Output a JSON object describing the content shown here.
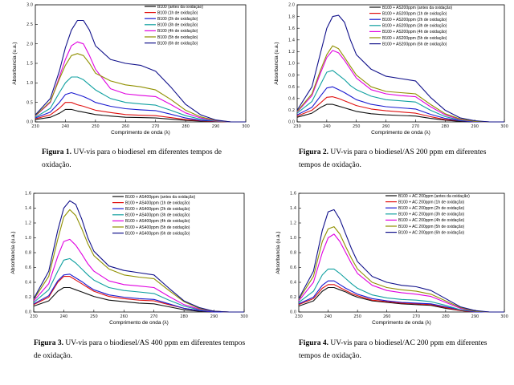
{
  "captions": [
    {
      "label": "Figura 1.",
      "text": "UV-vis para o biodiesel em diferentes tempos de oxidação."
    },
    {
      "label": "Figura 2.",
      "text": "UV-vis para o biodiesel/AS 200 ppm em diferentes tempos de oxidação."
    },
    {
      "label": "Figura 3.",
      "text": "UV-vis para o biodiesel/AS 400 ppm em diferentes tempos de oxidação."
    },
    {
      "label": "Figura 4.",
      "text": "UV-vis para o biodiesel/AC 200 ppm em diferentes tempos de oxidação."
    }
  ],
  "series_colors": [
    "#111111",
    "#e01010",
    "#1a1ad0",
    "#10a0a0",
    "#e000e0",
    "#909000",
    "#10108a"
  ],
  "chart_data": [
    {
      "type": "line",
      "xlabel": "Comprimento de onda (λ)",
      "ylabel": "Absorbancia (u.a.)",
      "xlim": [
        230,
        300
      ],
      "ylim": [
        0,
        3.0
      ],
      "xticks": [
        230,
        240,
        250,
        260,
        270,
        280,
        290,
        300
      ],
      "yticks": [
        0,
        0.5,
        1.0,
        1.5,
        2.0,
        2.5,
        3.0
      ],
      "ytick_labels": [
        "0.0",
        "0.5",
        "1.0",
        "1.5",
        "2.0",
        "2.5",
        "3.0"
      ],
      "legend_position": "top-right",
      "x": [
        230,
        235,
        238,
        240,
        242,
        244,
        246,
        248,
        250,
        255,
        260,
        265,
        270,
        275,
        280,
        285,
        290,
        295,
        300
      ],
      "series": [
        {
          "name": "B100 (antes da oxidação)",
          "values": [
            0.06,
            0.12,
            0.22,
            0.32,
            0.32,
            0.28,
            0.25,
            0.22,
            0.19,
            0.15,
            0.12,
            0.11,
            0.1,
            0.07,
            0.04,
            0.02,
            0.01,
            0.0,
            0.0
          ]
        },
        {
          "name": "B100 (1h de oxidação)",
          "values": [
            0.08,
            0.18,
            0.35,
            0.5,
            0.5,
            0.44,
            0.4,
            0.35,
            0.3,
            0.24,
            0.19,
            0.17,
            0.16,
            0.11,
            0.06,
            0.03,
            0.01,
            0.0,
            0.0
          ]
        },
        {
          "name": "B100 (2h de oxidação)",
          "values": [
            0.1,
            0.25,
            0.5,
            0.7,
            0.75,
            0.7,
            0.65,
            0.58,
            0.5,
            0.4,
            0.34,
            0.31,
            0.29,
            0.2,
            0.1,
            0.04,
            0.02,
            0.0,
            0.0
          ]
        },
        {
          "name": "B100 (3h de oxidação)",
          "values": [
            0.12,
            0.35,
            0.75,
            1.0,
            1.15,
            1.15,
            1.08,
            0.95,
            0.82,
            0.6,
            0.5,
            0.46,
            0.43,
            0.3,
            0.16,
            0.07,
            0.02,
            0.0,
            0.0
          ]
        },
        {
          "name": "B100 (4h de oxidação)",
          "values": [
            0.15,
            0.5,
            1.15,
            1.6,
            1.95,
            2.05,
            2.0,
            1.7,
            1.35,
            0.85,
            0.72,
            0.68,
            0.65,
            0.45,
            0.23,
            0.1,
            0.03,
            0.0,
            0.0
          ]
        },
        {
          "name": "B100 (5h de oxidação)",
          "values": [
            0.16,
            0.52,
            1.1,
            1.45,
            1.7,
            1.75,
            1.7,
            1.5,
            1.25,
            1.05,
            0.95,
            0.9,
            0.82,
            0.58,
            0.3,
            0.13,
            0.04,
            0.0,
            0.0
          ]
        },
        {
          "name": "B100 (6h de oxidação)",
          "values": [
            0.18,
            0.6,
            1.3,
            1.9,
            2.35,
            2.6,
            2.6,
            2.35,
            1.95,
            1.6,
            1.5,
            1.45,
            1.3,
            0.9,
            0.45,
            0.18,
            0.05,
            0.0,
            0.0
          ]
        }
      ]
    },
    {
      "type": "line",
      "xlabel": "Comprimento de onda (λ)",
      "ylabel": "Absorbancia (u.a.)",
      "xlim": [
        230,
        300
      ],
      "ylim": [
        0,
        2.0
      ],
      "xticks": [
        230,
        240,
        250,
        260,
        270,
        280,
        290,
        300
      ],
      "yticks": [
        0,
        0.2,
        0.4,
        0.6,
        0.8,
        1.0,
        1.2,
        1.4,
        1.6,
        1.8,
        2.0
      ],
      "ytick_labels": [
        "0.0",
        "0.2",
        "0.4",
        "0.6",
        "0.8",
        "1.0",
        "1.2",
        "1.4",
        "1.6",
        "1.8",
        "2.0"
      ],
      "legend_position": "top-right",
      "x": [
        230,
        235,
        238,
        240,
        242,
        244,
        246,
        248,
        250,
        255,
        260,
        265,
        270,
        275,
        280,
        285,
        290,
        295,
        300
      ],
      "series": [
        {
          "name": "B100 + AS200ppm (antes da oxidação)",
          "values": [
            0.08,
            0.15,
            0.25,
            0.3,
            0.3,
            0.27,
            0.24,
            0.21,
            0.18,
            0.14,
            0.12,
            0.11,
            0.1,
            0.06,
            0.03,
            0.01,
            0.0,
            0.0,
            0.0
          ]
        },
        {
          "name": "B100 + AS200ppm (1h de oxidação)",
          "values": [
            0.1,
            0.2,
            0.33,
            0.42,
            0.43,
            0.4,
            0.36,
            0.32,
            0.28,
            0.22,
            0.19,
            0.17,
            0.15,
            0.09,
            0.04,
            0.02,
            0.0,
            0.0,
            0.0
          ]
        },
        {
          "name": "B100 + AS200ppm (2h de oxidação)",
          "values": [
            0.12,
            0.25,
            0.45,
            0.58,
            0.6,
            0.55,
            0.5,
            0.44,
            0.38,
            0.3,
            0.26,
            0.24,
            0.22,
            0.13,
            0.06,
            0.02,
            0.0,
            0.0,
            0.0
          ]
        },
        {
          "name": "B100 + AS200ppm (3h de oxidação)",
          "values": [
            0.15,
            0.35,
            0.65,
            0.85,
            0.88,
            0.8,
            0.72,
            0.62,
            0.55,
            0.44,
            0.38,
            0.36,
            0.34,
            0.2,
            0.09,
            0.03,
            0.01,
            0.0,
            0.0
          ]
        },
        {
          "name": "B100 + AS200ppm (4h de oxidação)",
          "values": [
            0.17,
            0.45,
            0.85,
            1.1,
            1.22,
            1.18,
            1.05,
            0.9,
            0.75,
            0.55,
            0.48,
            0.45,
            0.43,
            0.26,
            0.12,
            0.04,
            0.01,
            0.0,
            0.0
          ]
        },
        {
          "name": "B100 + AS200ppm (5h de oxidação)",
          "values": [
            0.18,
            0.48,
            0.9,
            1.15,
            1.3,
            1.25,
            1.1,
            0.95,
            0.8,
            0.6,
            0.52,
            0.5,
            0.48,
            0.3,
            0.14,
            0.05,
            0.01,
            0.0,
            0.0
          ]
        },
        {
          "name": "B100 + AS200ppm (6h de oxidação)",
          "values": [
            0.2,
            0.6,
            1.2,
            1.6,
            1.8,
            1.82,
            1.7,
            1.4,
            1.15,
            0.9,
            0.78,
            0.74,
            0.7,
            0.42,
            0.2,
            0.07,
            0.02,
            0.0,
            0.0
          ]
        }
      ]
    },
    {
      "type": "line",
      "xlabel": "Comprimento de onda (λ)",
      "ylabel": "Absorbancia (u.a.)",
      "xlim": [
        230,
        300
      ],
      "ylim": [
        0,
        1.6
      ],
      "xticks": [
        230,
        240,
        250,
        260,
        270,
        280,
        290,
        300
      ],
      "yticks": [
        0,
        0.2,
        0.4,
        0.6,
        0.8,
        1.0,
        1.2,
        1.4,
        1.6
      ],
      "ytick_labels": [
        "0.0",
        "0.2",
        "0.4",
        "0.6",
        "0.8",
        "1.0",
        "1.2",
        "1.4",
        "1.6"
      ],
      "legend_position": "top-right",
      "x": [
        230,
        235,
        238,
        240,
        242,
        244,
        246,
        248,
        250,
        255,
        260,
        265,
        270,
        275,
        280,
        285,
        290,
        295,
        300
      ],
      "series": [
        {
          "name": "B100 + AS400ppm (antes da oxidação)",
          "values": [
            0.08,
            0.15,
            0.28,
            0.33,
            0.33,
            0.3,
            0.27,
            0.24,
            0.21,
            0.16,
            0.14,
            0.12,
            0.11,
            0.07,
            0.03,
            0.01,
            0.0,
            0.0,
            0.0
          ]
        },
        {
          "name": "B100 + AS400ppm (1h de oxidação)",
          "values": [
            0.1,
            0.2,
            0.4,
            0.48,
            0.48,
            0.43,
            0.38,
            0.33,
            0.28,
            0.21,
            0.18,
            0.16,
            0.15,
            0.1,
            0.05,
            0.02,
            0.0,
            0.0,
            0.0
          ]
        },
        {
          "name": "B100 + AS400ppm (2h de oxidação)",
          "values": [
            0.11,
            0.22,
            0.42,
            0.5,
            0.51,
            0.46,
            0.41,
            0.35,
            0.3,
            0.23,
            0.2,
            0.18,
            0.17,
            0.11,
            0.05,
            0.02,
            0.0,
            0.0,
            0.0
          ]
        },
        {
          "name": "B100 + AS400ppm (3h de oxidação)",
          "values": [
            0.13,
            0.3,
            0.55,
            0.7,
            0.72,
            0.66,
            0.58,
            0.5,
            0.43,
            0.33,
            0.29,
            0.27,
            0.25,
            0.16,
            0.08,
            0.03,
            0.01,
            0.0,
            0.0
          ]
        },
        {
          "name": "B100 + AS400ppm (4h de oxidação)",
          "values": [
            0.15,
            0.38,
            0.75,
            0.95,
            0.98,
            0.9,
            0.78,
            0.65,
            0.55,
            0.42,
            0.37,
            0.35,
            0.33,
            0.21,
            0.1,
            0.04,
            0.01,
            0.0,
            0.0
          ]
        },
        {
          "name": "B100 + AS400ppm (5h de oxidação)",
          "values": [
            0.17,
            0.48,
            0.98,
            1.28,
            1.38,
            1.3,
            1.12,
            0.92,
            0.76,
            0.58,
            0.5,
            0.47,
            0.45,
            0.29,
            0.14,
            0.05,
            0.01,
            0.0,
            0.0
          ]
        },
        {
          "name": "B100 + AS400ppm (6h de oxidação)",
          "values": [
            0.18,
            0.55,
            1.1,
            1.4,
            1.5,
            1.45,
            1.25,
            1.0,
            0.82,
            0.62,
            0.56,
            0.53,
            0.5,
            0.32,
            0.15,
            0.06,
            0.01,
            0.0,
            0.0
          ]
        }
      ]
    },
    {
      "type": "line",
      "xlabel": "Comprimento de onda (λ)",
      "ylabel": "Absorbancia (u.a.)",
      "xlim": [
        230,
        300
      ],
      "ylim": [
        0,
        1.6
      ],
      "xticks": [
        230,
        240,
        250,
        260,
        270,
        280,
        290,
        300
      ],
      "yticks": [
        0,
        0.2,
        0.4,
        0.6,
        0.8,
        1.0,
        1.2,
        1.4,
        1.6
      ],
      "ytick_labels": [
        "0.0",
        "0.2",
        "0.4",
        "0.6",
        "0.8",
        "1.0",
        "1.2",
        "1.4",
        "1.6"
      ],
      "legend_position": "top-right",
      "x": [
        230,
        235,
        238,
        240,
        242,
        244,
        246,
        248,
        250,
        255,
        260,
        265,
        270,
        275,
        280,
        285,
        290,
        295,
        300
      ],
      "series": [
        {
          "name": "B100 + AC 200ppm (antes da oxidação)",
          "values": [
            0.08,
            0.15,
            0.28,
            0.33,
            0.33,
            0.3,
            0.27,
            0.23,
            0.2,
            0.15,
            0.13,
            0.11,
            0.1,
            0.09,
            0.05,
            0.02,
            0.0,
            0.0,
            0.0
          ]
        },
        {
          "name": "B100 + AC 200ppm (1h de oxidação)",
          "values": [
            0.1,
            0.18,
            0.32,
            0.37,
            0.37,
            0.33,
            0.29,
            0.25,
            0.22,
            0.16,
            0.14,
            0.12,
            0.11,
            0.1,
            0.06,
            0.02,
            0.0,
            0.0,
            0.0
          ]
        },
        {
          "name": "B100 + AC 200ppm (2h de oxidação)",
          "values": [
            0.11,
            0.2,
            0.36,
            0.42,
            0.42,
            0.37,
            0.32,
            0.28,
            0.24,
            0.18,
            0.15,
            0.13,
            0.12,
            0.11,
            0.07,
            0.03,
            0.0,
            0.0,
            0.0
          ]
        },
        {
          "name": "B100 + AC 200ppm (3h de oxidação)",
          "values": [
            0.13,
            0.28,
            0.5,
            0.58,
            0.58,
            0.52,
            0.45,
            0.38,
            0.32,
            0.23,
            0.19,
            0.17,
            0.16,
            0.14,
            0.09,
            0.03,
            0.01,
            0.0,
            0.0
          ]
        },
        {
          "name": "B100 + AC 200ppm (4h de oxidação)",
          "values": [
            0.15,
            0.4,
            0.8,
            1.0,
            1.05,
            0.95,
            0.8,
            0.65,
            0.52,
            0.36,
            0.29,
            0.26,
            0.24,
            0.21,
            0.13,
            0.05,
            0.01,
            0.0,
            0.0
          ]
        },
        {
          "name": "B100 + AC 200ppm (5h de oxidação)",
          "values": [
            0.17,
            0.48,
            0.95,
            1.12,
            1.15,
            1.05,
            0.88,
            0.72,
            0.58,
            0.4,
            0.33,
            0.3,
            0.28,
            0.24,
            0.15,
            0.06,
            0.01,
            0.0,
            0.0
          ]
        },
        {
          "name": "B100 + AC 200ppm (6h de oxidação)",
          "values": [
            0.18,
            0.55,
            1.1,
            1.35,
            1.38,
            1.25,
            1.05,
            0.85,
            0.68,
            0.48,
            0.4,
            0.36,
            0.34,
            0.29,
            0.18,
            0.07,
            0.02,
            0.0,
            0.0
          ]
        }
      ]
    }
  ]
}
